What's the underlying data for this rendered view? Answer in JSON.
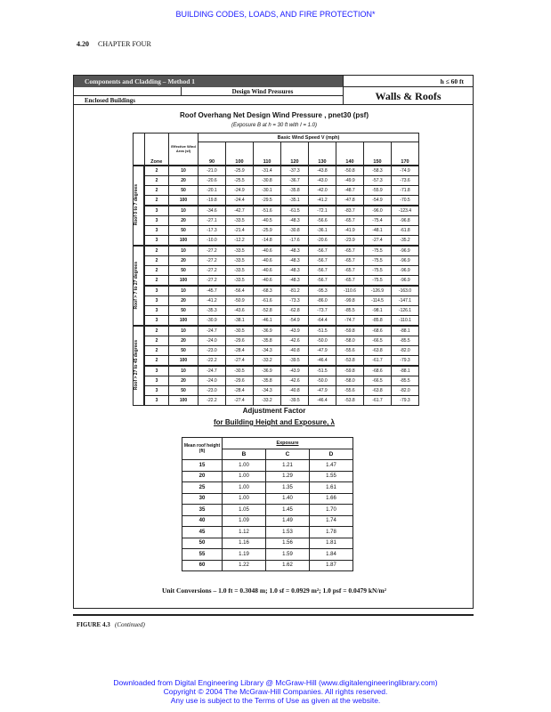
{
  "running_header": "BUILDING CODES, LOADS, AND FIRE PROTECTION*",
  "page_number": "4.20",
  "chapter": "CHAPTER FOUR",
  "figure": {
    "header_bar": "Components and Cladding – Method 1",
    "height_limit": "h ≤ 60 ft",
    "design_wind_pressures": "Design Wind Pressures",
    "enclosed_buildings": "Enclosed Buildings",
    "walls_roofs": "Walls & Roofs",
    "table_title": "Roof Overhang Net Design Wind Pressure , pnet30 (psf)",
    "table_subtitle": "(Exposure B at h = 30 ft  with I = 1.0)",
    "headers": {
      "zone": "Zone",
      "area": "Effective Wind Area (sf)",
      "speed": "Basic Wind Speed V (mph)"
    },
    "speeds": [
      "90",
      "100",
      "110",
      "120",
      "130",
      "140",
      "150",
      "170"
    ],
    "groups": [
      {
        "label": "Roof 0 to 7 degrees",
        "rows": [
          {
            "zone": "2",
            "area": "10",
            "v": [
              "-21.0",
              "-25.9",
              "-31.4",
              "-37.3",
              "-43.8",
              "-50.8",
              "-58.3",
              "-74.9"
            ]
          },
          {
            "zone": "2",
            "area": "20",
            "v": [
              "-20.6",
              "-25.5",
              "-30.8",
              "-36.7",
              "-43.0",
              "-49.9",
              "-57.3",
              "-73.6"
            ]
          },
          {
            "zone": "2",
            "area": "50",
            "v": [
              "-20.1",
              "-24.9",
              "-30.1",
              "-35.8",
              "-42.0",
              "-48.7",
              "-55.9",
              "-71.8"
            ]
          },
          {
            "zone": "2",
            "area": "100",
            "v": [
              "-19.8",
              "-24.4",
              "-29.5",
              "-35.1",
              "-41.2",
              "-47.8",
              "-54.9",
              "-70.5"
            ]
          },
          {
            "zone": "3",
            "area": "10",
            "v": [
              "-34.6",
              "-42.7",
              "-51.6",
              "-61.5",
              "-72.1",
              "-83.7",
              "-96.0",
              "-123.4"
            ]
          },
          {
            "zone": "3",
            "area": "20",
            "v": [
              "-27.1",
              "-33.5",
              "-40.5",
              "-48.3",
              "-56.6",
              "-65.7",
              "-75.4",
              "-96.8"
            ]
          },
          {
            "zone": "3",
            "area": "50",
            "v": [
              "-17.3",
              "-21.4",
              "-25.9",
              "-30.8",
              "-36.1",
              "-41.9",
              "-48.1",
              "-61.8"
            ]
          },
          {
            "zone": "3",
            "area": "100",
            "v": [
              "-10.0",
              "-12.2",
              "-14.8",
              "-17.6",
              "-20.6",
              "-23.9",
              "-27.4",
              "-35.2"
            ]
          }
        ]
      },
      {
        "label": "Roof > 7 to 27 degrees",
        "rows": [
          {
            "zone": "2",
            "area": "10",
            "v": [
              "-27.2",
              "-33.5",
              "-40.6",
              "-48.3",
              "-56.7",
              "-65.7",
              "-75.5",
              "-96.9"
            ]
          },
          {
            "zone": "2",
            "area": "20",
            "v": [
              "-27.2",
              "-33.5",
              "-40.6",
              "-48.3",
              "-56.7",
              "-65.7",
              "-75.5",
              "-96.9"
            ]
          },
          {
            "zone": "2",
            "area": "50",
            "v": [
              "-27.2",
              "-33.5",
              "-40.6",
              "-48.3",
              "-56.7",
              "-65.7",
              "-75.5",
              "-96.9"
            ]
          },
          {
            "zone": "2",
            "area": "100",
            "v": [
              "-27.2",
              "-33.5",
              "-40.6",
              "-48.3",
              "-56.7",
              "-65.7",
              "-75.5",
              "-96.9"
            ]
          },
          {
            "zone": "3",
            "area": "10",
            "v": [
              "-45.7",
              "-56.4",
              "-68.3",
              "-81.2",
              "-95.3",
              "-110.6",
              "-126.9",
              "-163.0"
            ]
          },
          {
            "zone": "3",
            "area": "20",
            "v": [
              "-41.2",
              "-50.9",
              "-61.6",
              "-73.3",
              "-86.0",
              "-99.8",
              "-114.5",
              "-147.1"
            ]
          },
          {
            "zone": "3",
            "area": "50",
            "v": [
              "-35.3",
              "-43.6",
              "-52.8",
              "-62.8",
              "-73.7",
              "-85.5",
              "-98.1",
              "-126.1"
            ]
          },
          {
            "zone": "3",
            "area": "100",
            "v": [
              "-30.9",
              "-38.1",
              "-46.1",
              "-54.9",
              "-64.4",
              "-74.7",
              "-85.8",
              "-110.1"
            ]
          }
        ]
      },
      {
        "label": "Roof > 27 to 45 degrees",
        "rows": [
          {
            "zone": "2",
            "area": "10",
            "v": [
              "-24.7",
              "-30.5",
              "-36.9",
              "-43.9",
              "-51.5",
              "-59.8",
              "-68.6",
              "-88.1"
            ]
          },
          {
            "zone": "2",
            "area": "20",
            "v": [
              "-24.0",
              "-29.6",
              "-35.8",
              "-42.6",
              "-50.0",
              "-58.0",
              "-66.5",
              "-85.5"
            ]
          },
          {
            "zone": "2",
            "area": "50",
            "v": [
              "-23.0",
              "-28.4",
              "-34.3",
              "-40.8",
              "-47.9",
              "-55.6",
              "-63.8",
              "-82.0"
            ]
          },
          {
            "zone": "2",
            "area": "100",
            "v": [
              "-22.2",
              "-27.4",
              "-33.2",
              "-39.5",
              "-46.4",
              "-53.8",
              "-61.7",
              "-79.3"
            ]
          },
          {
            "zone": "3",
            "area": "10",
            "v": [
              "-24.7",
              "-30.5",
              "-36.9",
              "-43.9",
              "-51.5",
              "-59.8",
              "-68.6",
              "-88.1"
            ]
          },
          {
            "zone": "3",
            "area": "20",
            "v": [
              "-24.0",
              "-29.6",
              "-35.8",
              "-42.6",
              "-50.0",
              "-58.0",
              "-66.5",
              "-85.5"
            ]
          },
          {
            "zone": "3",
            "area": "50",
            "v": [
              "-23.0",
              "-28.4",
              "-34.3",
              "-40.8",
              "-47.9",
              "-55.6",
              "-63.8",
              "-82.0"
            ]
          },
          {
            "zone": "3",
            "area": "100",
            "v": [
              "-22.2",
              "-27.4",
              "-33.2",
              "-39.5",
              "-46.4",
              "-53.8",
              "-61.7",
              "-79.3"
            ]
          }
        ]
      }
    ],
    "adjust_title_1": "Adjustment Factor",
    "adjust_title_2": "for Building Height and Exposure, λ",
    "adjust_headers": {
      "height": "Mean roof height (ft)",
      "exposure": "Exposure",
      "cols": [
        "B",
        "C",
        "D"
      ]
    },
    "adjust_rows": [
      {
        "h": "15",
        "v": [
          "1.00",
          "1.21",
          "1.47"
        ]
      },
      {
        "h": "20",
        "v": [
          "1.00",
          "1.29",
          "1.55"
        ]
      },
      {
        "h": "25",
        "v": [
          "1.00",
          "1.35",
          "1.61"
        ]
      },
      {
        "h": "30",
        "v": [
          "1.00",
          "1.40",
          "1.66"
        ]
      },
      {
        "h": "35",
        "v": [
          "1.05",
          "1.45",
          "1.70"
        ]
      },
      {
        "h": "40",
        "v": [
          "1.09",
          "1.49",
          "1.74"
        ]
      },
      {
        "h": "45",
        "v": [
          "1.12",
          "1.53",
          "1.78"
        ]
      },
      {
        "h": "50",
        "v": [
          "1.16",
          "1.56",
          "1.81"
        ]
      },
      {
        "h": "55",
        "v": [
          "1.19",
          "1.59",
          "1.84"
        ]
      },
      {
        "h": "60",
        "v": [
          "1.22",
          "1.62",
          "1.87"
        ]
      }
    ],
    "unit_conversions": "Unit Conversions – 1.0 ft = 0.3048 m;  1.0 sf = 0.0929 m²;  1.0 psf = 0.0479 kN/m²"
  },
  "figure_label": "FIGURE 4.3",
  "figure_continued": "(Continued)",
  "footer": [
    "Downloaded from Digital Engineering Library @ McGraw-Hill (www.digitalengineeringlibrary.com)",
    "Copyright © 2004 The McGraw-Hill Companies. All rights reserved.",
    "Any use is subject to the Terms of Use as given at the website."
  ]
}
